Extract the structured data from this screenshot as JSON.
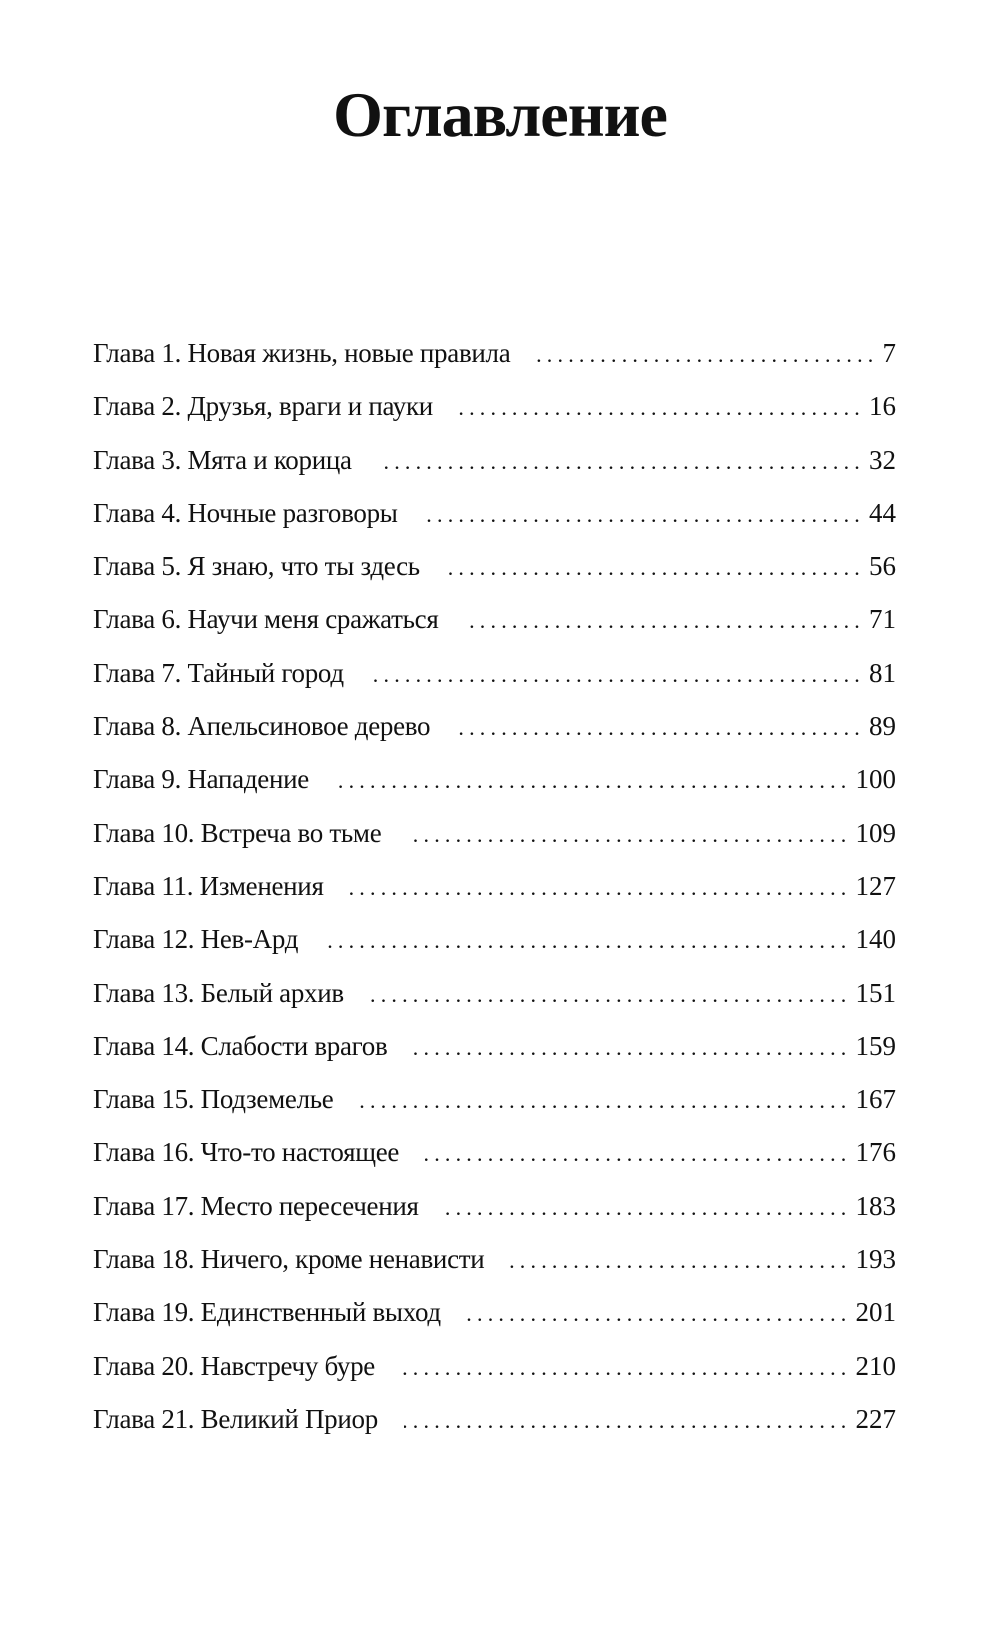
{
  "title": "Оглавление",
  "entries": [
    {
      "label": "Глава 1. Новая жизнь, новые правила",
      "page": "7"
    },
    {
      "label": "Глава 2. Друзья, враги и пауки",
      "page": "16"
    },
    {
      "label": "Глава 3. Мята и корица",
      "page": "32"
    },
    {
      "label": "Глава 4. Ночные разговоры",
      "page": "44"
    },
    {
      "label": "Глава 5. Я знаю, что ты здесь",
      "page": "56"
    },
    {
      "label": "Глава 6. Научи меня сражаться",
      "page": "71"
    },
    {
      "label": "Глава 7. Тайный город",
      "page": "81"
    },
    {
      "label": "Глава 8. Апельсиновое дерево",
      "page": "89"
    },
    {
      "label": "Глава 9. Нападение",
      "page": "100"
    },
    {
      "label": "Глава 10. Встреча во тьме",
      "page": "109"
    },
    {
      "label": "Глава 11. Изменения",
      "page": "127"
    },
    {
      "label": "Глава 12. Нев-Ард",
      "page": "140"
    },
    {
      "label": "Глава 13. Белый архив",
      "page": "151"
    },
    {
      "label": "Глава 14. Слабости врагов",
      "page": "159"
    },
    {
      "label": "Глава 15. Подземелье",
      "page": "167"
    },
    {
      "label": "Глава 16. Что-то настоящее",
      "page": "176"
    },
    {
      "label": "Глава 17. Место пересечения",
      "page": "183"
    },
    {
      "label": "Глава 18. Ничего, кроме ненависти",
      "page": "193"
    },
    {
      "label": "Глава 19. Единственный выход",
      "page": "201"
    },
    {
      "label": "Глава 20. Навстречу буре",
      "page": "210"
    },
    {
      "label": "Глава 21. Великий Приор",
      "page": "227"
    }
  ]
}
